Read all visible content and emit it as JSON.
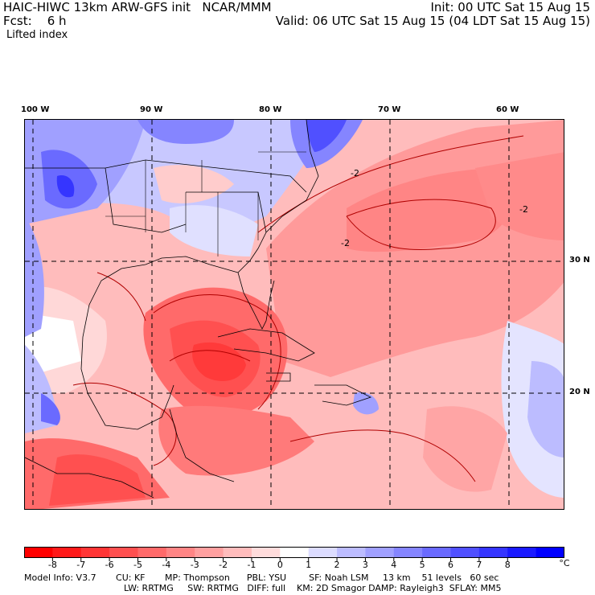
{
  "header": {
    "model_line": "HAIC-HIWC 13km ARW-GFS init   NCAR/MMM",
    "fcst_line": "Fcst:    6 h",
    "init_line": "Init: 00 UTC Sat 15 Aug 15",
    "valid_line": "Valid: 06 UTC Sat 15 Aug 15 (04 LDT Sat 15 Aug 15)",
    "field_name": "Lifted index"
  },
  "axes": {
    "lon_labels": [
      "100 W",
      "90 W",
      "80 W",
      "70 W",
      "60 W"
    ],
    "lat_labels": [
      "30 N",
      "20 N"
    ]
  },
  "map": {
    "type": "filled-contour",
    "lon_range": [
      -100,
      -56
    ],
    "lat_range": [
      14,
      43
    ],
    "contour_labels": [
      "-2",
      "-2",
      "-2"
    ]
  },
  "colorbar": {
    "unit": "°C",
    "ticks": [
      "-8",
      "-7",
      "-6",
      "-5",
      "-4",
      "-3",
      "-2",
      "-1",
      "0",
      "1",
      "2",
      "3",
      "4",
      "5",
      "6",
      "7",
      "8"
    ],
    "colors": [
      "#ff0000",
      "#ff1a1a",
      "#ff3535",
      "#ff5050",
      "#ff6a6a",
      "#ff8585",
      "#ffa0a0",
      "#ffbcbc",
      "#ffdcdc",
      "#ffffff",
      "#dcdcff",
      "#bcbcff",
      "#a0a0ff",
      "#8585ff",
      "#6a6aff",
      "#5050ff",
      "#3535ff",
      "#1a1aff",
      "#0000ff"
    ]
  },
  "footer": {
    "line1": "Model Info: V3.7       CU: KF       MP: Thompson      PBL: YSU        SF: Noah LSM     13 km    51 levels   60 sec",
    "line2": "LW: RRTMG     SW: RRTMG   DIFF: full    KM: 2D Smagor DAMP: Rayleigh3  SFLAY: MM5"
  }
}
